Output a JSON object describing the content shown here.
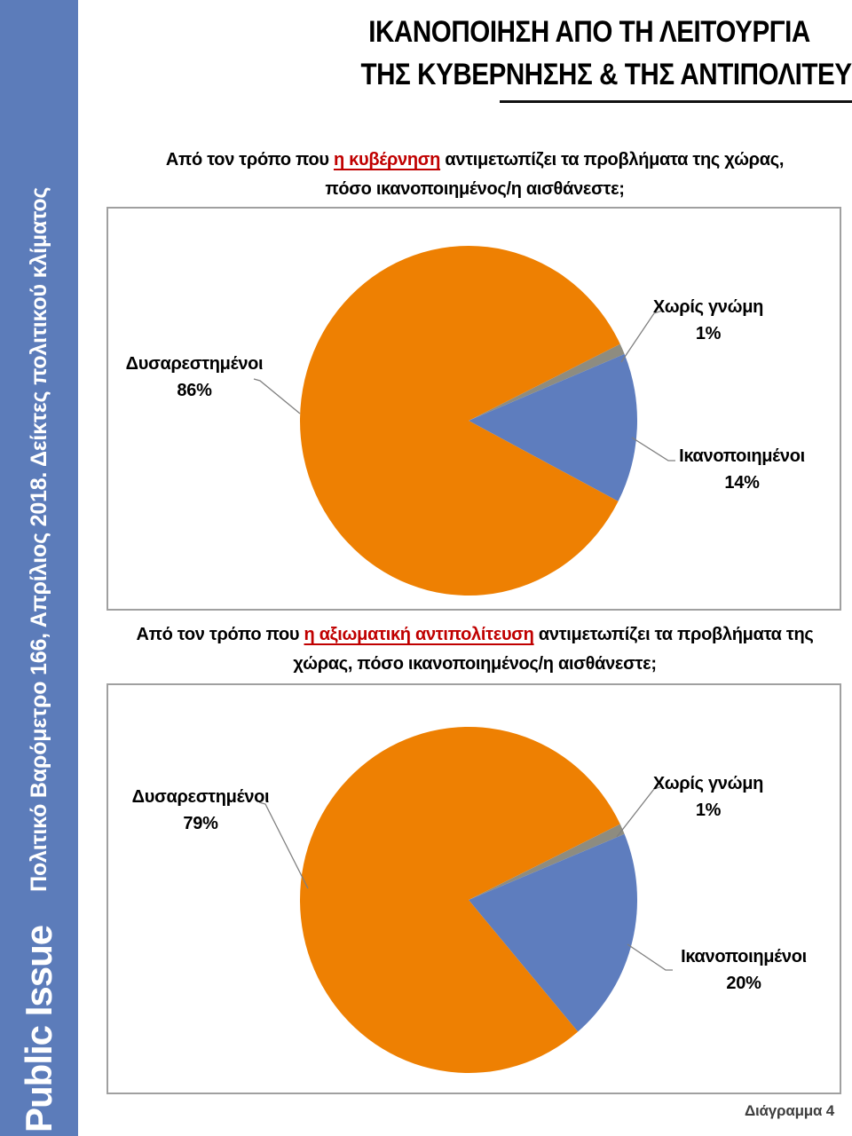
{
  "page": {
    "title_line1": "ΙΚΑΝΟΠΟΙΗΣΗ ΑΠΟ ΤΗ ΛΕΙΤΟΥΡΓΙΑ",
    "title_line2": "ΤΗΣ ΚΥΒΕΡΝΗΣΗΣ & ΤΗΣ ΑΝΤΙΠΟΛΙΤΕΥΣΗΣ",
    "footer_caption": "Διάγραμμα 4"
  },
  "sidebar": {
    "brand": "Public Issue",
    "subtitle": "Πολιτικό Βαρόμετρο 166, Απρίλιος 2018. Δείκτες πολιτικού κλίματος",
    "bg_color": "#5C7CBA",
    "text_color": "#FFFFFF"
  },
  "colors": {
    "dissatisfied_orange": "#EE8002",
    "satisfied_blue": "#5E7DBE",
    "no_opinion_gray": "#8E8C80",
    "highlight_red": "#C00000",
    "frame_border": "#A0A0A0",
    "leader_line": "#7F7F7F"
  },
  "chart_data": [
    {
      "type": "pie",
      "question": {
        "pre": "Από τον τρόπο που ",
        "highlight": "η κυβέρνηση",
        "post": " αντιμετωπίζει τα προβλήματα της χώρας,",
        "line2": "πόσο ικανοποιημένος/η αισθάνεστε;"
      },
      "start_angle_deg": 64,
      "legend": "none",
      "grid": false,
      "slices": [
        {
          "key": "no-opinion",
          "label": "Χωρίς γνώμη",
          "value": 1,
          "value_label": "1%",
          "color": "#8E8C80"
        },
        {
          "key": "satisfied",
          "label": "Ικανοποιημένοι",
          "value": 14,
          "value_label": "14%",
          "color": "#5E7DBE"
        },
        {
          "key": "dissatisfied",
          "label": "Δυσαρεστημένοι",
          "value": 86,
          "value_label": "86%",
          "color": "#EE8002"
        }
      ]
    },
    {
      "type": "pie",
      "question": {
        "pre": "Από τον τρόπο που ",
        "highlight": "η αξιωματική αντιπολίτευση",
        "post": " αντιμετωπίζει τα προβλήματα της",
        "line2": "χώρας, πόσο ικανοποιημένος/η αισθάνεστε;"
      },
      "start_angle_deg": 64,
      "legend": "none",
      "grid": false,
      "slices": [
        {
          "key": "no-opinion",
          "label": "Χωρίς γνώμη",
          "value": 1,
          "value_label": "1%",
          "color": "#8E8C80"
        },
        {
          "key": "satisfied",
          "label": "Ικανοποιημένοι",
          "value": 20,
          "value_label": "20%",
          "color": "#5E7DBE"
        },
        {
          "key": "dissatisfied",
          "label": "Δυσαρεστημένοι",
          "value": 79,
          "value_label": "79%",
          "color": "#EE8002"
        }
      ]
    }
  ]
}
